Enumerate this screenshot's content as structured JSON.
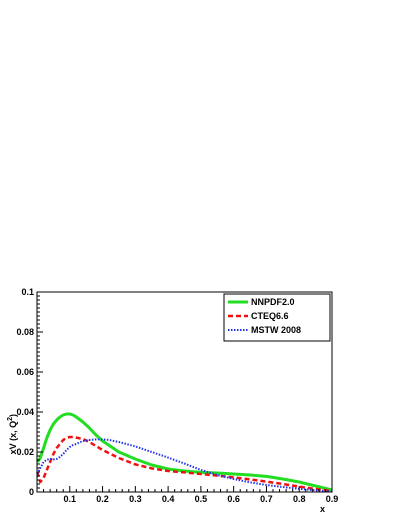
{
  "chart_data": {
    "type": "line",
    "xlabel": "x",
    "ylabel": "xV (x, Q",
    "ylabel_sup": "2",
    "ylabel_close": ")",
    "xlim": [
      0.0,
      0.9
    ],
    "ylim": [
      0.0,
      0.1
    ],
    "xticks": [
      "0.1",
      "0.2",
      "0.3",
      "0.4",
      "0.5",
      "0.6",
      "0.7",
      "0.8",
      "0.9"
    ],
    "yticks": [
      "0",
      "0.02",
      "0.04",
      "0.06",
      "0.08",
      "0.1"
    ],
    "legend_position": "top-right",
    "series": [
      {
        "name": "NNPDF2.0",
        "color": "#22dd22",
        "style": "solid",
        "x": [
          0.001,
          0.01,
          0.02,
          0.03,
          0.04,
          0.05,
          0.06,
          0.07,
          0.08,
          0.09,
          0.1,
          0.11,
          0.12,
          0.14,
          0.16,
          0.18,
          0.2,
          0.25,
          0.3,
          0.35,
          0.4,
          0.45,
          0.5,
          0.55,
          0.6,
          0.65,
          0.7,
          0.75,
          0.8,
          0.85,
          0.9
        ],
        "y": [
          0.015,
          0.017,
          0.022,
          0.027,
          0.031,
          0.034,
          0.036,
          0.0375,
          0.0385,
          0.039,
          0.039,
          0.0385,
          0.0375,
          0.035,
          0.032,
          0.0285,
          0.0255,
          0.02,
          0.0165,
          0.0135,
          0.0115,
          0.0105,
          0.0098,
          0.0095,
          0.009,
          0.0085,
          0.0078,
          0.0065,
          0.005,
          0.003,
          0.001
        ]
      },
      {
        "name": "CTEQ6.6",
        "color": "#ee1111",
        "style": "dashed",
        "x": [
          0.001,
          0.01,
          0.02,
          0.03,
          0.04,
          0.05,
          0.06,
          0.07,
          0.08,
          0.09,
          0.1,
          0.11,
          0.12,
          0.14,
          0.16,
          0.18,
          0.2,
          0.25,
          0.3,
          0.35,
          0.4,
          0.45,
          0.5,
          0.55,
          0.6,
          0.65,
          0.7,
          0.75,
          0.8,
          0.85,
          0.9
        ],
        "y": [
          0.01,
          0.005,
          0.007,
          0.011,
          0.015,
          0.019,
          0.022,
          0.024,
          0.026,
          0.027,
          0.0275,
          0.0275,
          0.0272,
          0.0265,
          0.025,
          0.023,
          0.021,
          0.017,
          0.0138,
          0.0118,
          0.0105,
          0.0098,
          0.009,
          0.0082,
          0.0073,
          0.0063,
          0.0052,
          0.004,
          0.0027,
          0.0015,
          0.0005
        ]
      },
      {
        "name": "MSTW 2008",
        "color": "#2233ee",
        "style": "dotted",
        "x": [
          0.001,
          0.01,
          0.02,
          0.03,
          0.04,
          0.05,
          0.06,
          0.07,
          0.08,
          0.09,
          0.1,
          0.11,
          0.12,
          0.13,
          0.14,
          0.16,
          0.18,
          0.2,
          0.22,
          0.25,
          0.3,
          0.35,
          0.4,
          0.45,
          0.5,
          0.55,
          0.6,
          0.65,
          0.7,
          0.75,
          0.8,
          0.85,
          0.9
        ],
        "y": [
          0.009,
          0.012,
          0.015,
          0.0162,
          0.0165,
          0.0163,
          0.0165,
          0.0175,
          0.019,
          0.021,
          0.0225,
          0.0235,
          0.024,
          0.0248,
          0.0255,
          0.026,
          0.0263,
          0.0263,
          0.026,
          0.025,
          0.0228,
          0.02,
          0.0172,
          0.0142,
          0.011,
          0.0085,
          0.0065,
          0.0048,
          0.0035,
          0.0025,
          0.0016,
          0.0008,
          0.0003
        ]
      }
    ]
  }
}
